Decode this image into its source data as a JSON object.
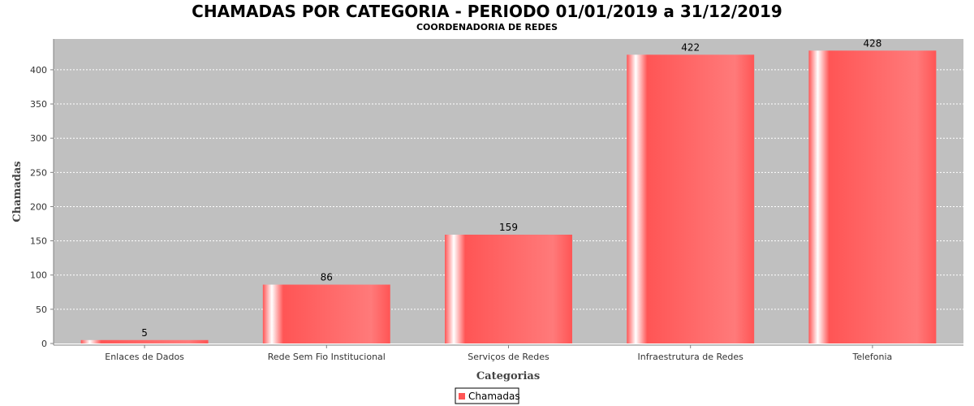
{
  "chart_data": {
    "type": "bar",
    "title": "CHAMADAS POR CATEGORIA - PERIODO 01/01/2019 a 31/12/2019",
    "subtitle": "COORDENADORIA DE REDES",
    "xlabel": "Categorias",
    "ylabel": "Chamadas",
    "categories": [
      "Enlaces de Dados",
      "Rede Sem Fio Institucional",
      "Serviços de Redes",
      "Infraestrutura de Redes",
      "Telefonia"
    ],
    "series": [
      {
        "name": "Chamadas",
        "values": [
          5,
          86,
          159,
          422,
          428
        ]
      }
    ],
    "ylim": [
      0,
      445
    ],
    "yticks": [
      0,
      50,
      100,
      150,
      200,
      250,
      300,
      350,
      400
    ],
    "grid": true,
    "legend": "bottom-center",
    "colors": {
      "bar": "#ff5555",
      "plot_background": "#c0c0c0",
      "grid": "#ffffff"
    }
  }
}
